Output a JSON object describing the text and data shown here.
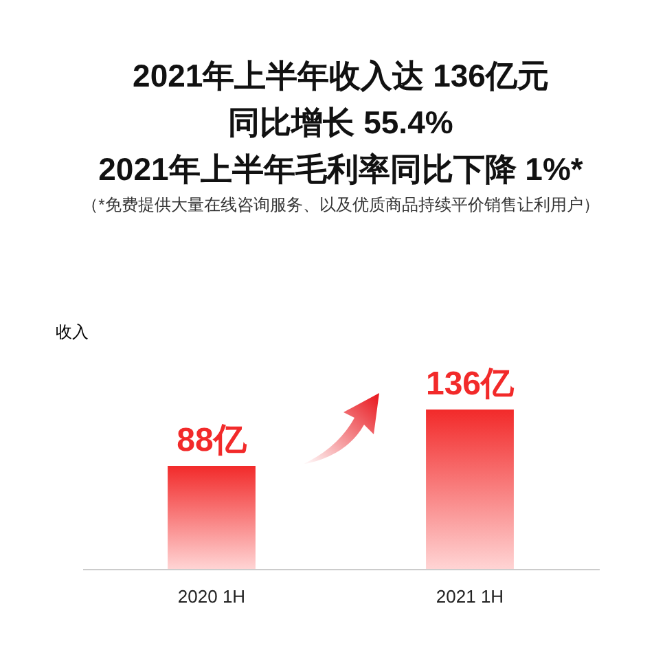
{
  "chart_data": {
    "type": "bar",
    "title": [
      "2021年上半年收入达 136亿元",
      "同比增长 55.4%",
      "2021年上半年毛利率同比下降 1%*"
    ],
    "subtitle": "（*免费提供大量在线咨询服务、以及优质商品持续平价销售让利用户）",
    "ylabel": "收入",
    "categories": [
      "2020 1H",
      "2021 1H"
    ],
    "values": [
      88,
      136
    ],
    "value_labels": [
      "88亿",
      "136亿"
    ],
    "color": "#f22a2a"
  }
}
